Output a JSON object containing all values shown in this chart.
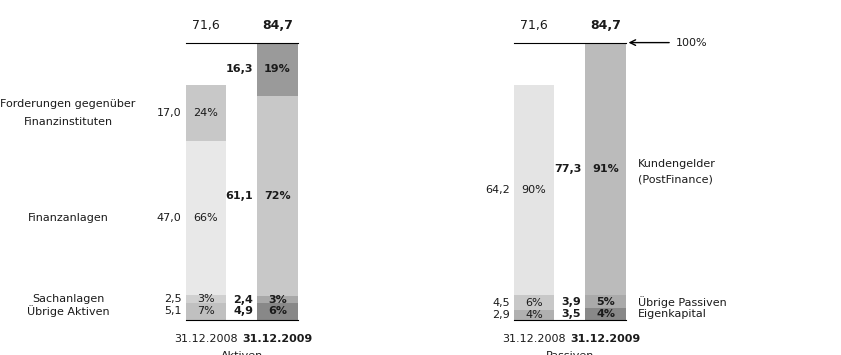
{
  "aktiven": {
    "total_2008": "71,6",
    "total_2009": "84,7",
    "bar_2008": {
      "segments": [
        5.1,
        2.5,
        47.0,
        17.0
      ],
      "pcts": [
        "7%",
        "3%",
        "66%",
        "24%"
      ],
      "values": [
        "5,1",
        "2,5",
        "47,0",
        "17,0"
      ]
    },
    "bar_2009": {
      "segments": [
        4.9,
        2.4,
        61.1,
        16.3
      ],
      "pcts": [
        "6%",
        "3%",
        "72%",
        "19%"
      ],
      "values": [
        "4,9",
        "2,4",
        "61,1",
        "16,3"
      ]
    },
    "colors_2008": [
      "#c0c0c0",
      "#d0d0d0",
      "#e8e8e8",
      "#c8c8c8"
    ],
    "colors_2009": [
      "#888888",
      "#a8a8a8",
      "#c8c8c8",
      "#9a9a9a"
    ],
    "label_2008": "31.12.2008",
    "label_2009": "31.12.2009",
    "xlabel": "Aktiven",
    "left_labels_top": [
      "Forderungen gegenüber",
      "Finanzinstituten"
    ],
    "left_label_mid": "Finanzanlagen",
    "left_label_bot1": "Sachanlagen",
    "left_label_bot2": "Übrige Aktiven"
  },
  "passiven": {
    "total_2008": "71,6",
    "total_2009": "84,7",
    "bar_2008": {
      "segments": [
        2.9,
        4.5,
        64.2
      ],
      "pcts": [
        "4%",
        "6%",
        "90%"
      ],
      "values": [
        "2,9",
        "4,5",
        "64,2"
      ]
    },
    "bar_2009": {
      "segments": [
        3.5,
        3.9,
        77.3
      ],
      "pcts": [
        "4%",
        "5%",
        "91%"
      ],
      "values": [
        "3,5",
        "3,9",
        "77,3"
      ]
    },
    "colors_2008": [
      "#b0b0b0",
      "#c8c8c8",
      "#e4e4e4"
    ],
    "colors_2009": [
      "#888888",
      "#aaaaaa",
      "#bbbbbb"
    ],
    "label_2008": "31.12.2008",
    "label_2009": "31.12.2009",
    "xlabel": "Passiven",
    "right_label_top": "Kundengelder\n(PostFinance)",
    "right_label_mid": "Übrige Passiven",
    "right_label_bot": "Eigenkapital",
    "arrow_label": "100%"
  },
  "bar_width": 0.06,
  "bg_color": "#ffffff",
  "text_color": "#1a1a1a",
  "fontsize_label": 8.0,
  "fontsize_pct": 8.0,
  "fontsize_total": 9.0
}
